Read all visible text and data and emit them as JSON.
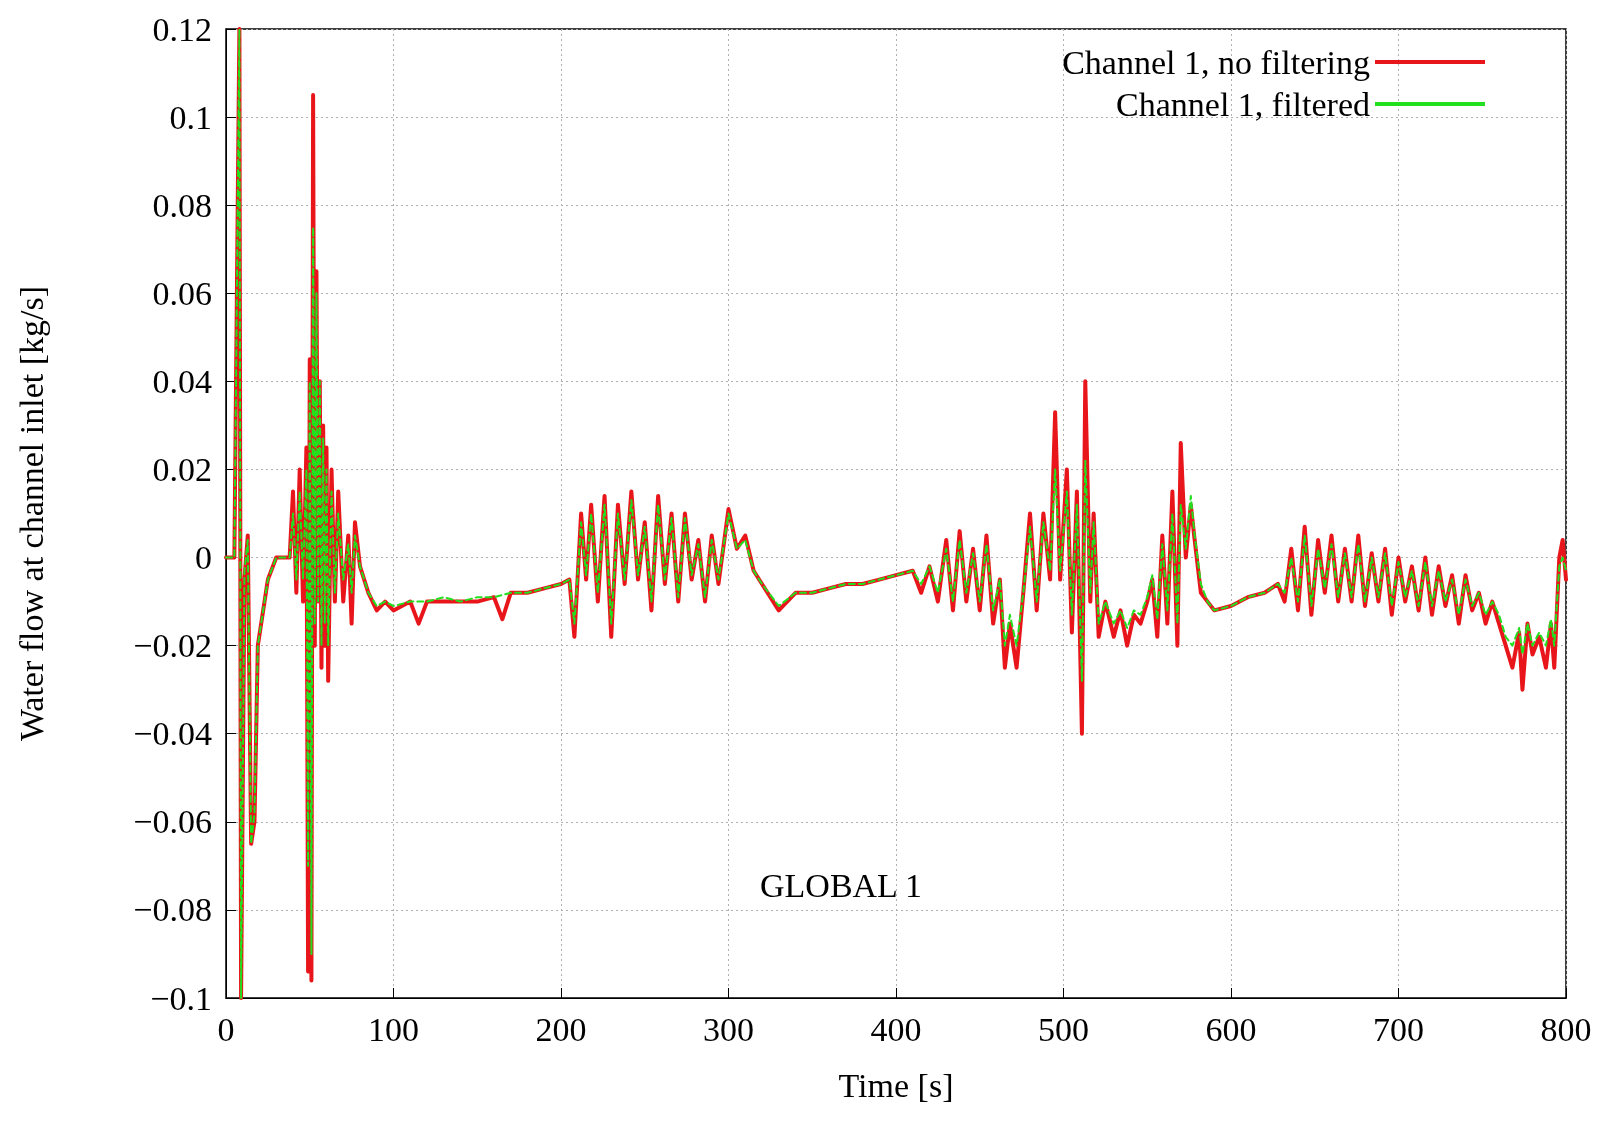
{
  "chart_data": {
    "type": "line",
    "xlabel": "Time [s]",
    "ylabel": "Water flow at channel inlet [kg/s]",
    "annotations": [
      "GLOBAL 1"
    ],
    "xlim": [
      0,
      800
    ],
    "xticks": [
      0,
      100,
      200,
      300,
      400,
      500,
      600,
      700,
      800
    ],
    "ylim": [
      -0.1,
      0.12
    ],
    "yticks": [
      {
        "value": -0.1,
        "label": "−0.1"
      },
      {
        "value": -0.08,
        "label": "−0.08"
      },
      {
        "value": -0.06,
        "label": "−0.06"
      },
      {
        "value": -0.04,
        "label": "−0.04"
      },
      {
        "value": -0.02,
        "label": "−0.02"
      },
      0,
      0.02,
      0.04,
      0.06,
      0.08,
      0.1,
      0.12
    ],
    "grid": true,
    "legend": "top right",
    "marker": "none",
    "series": [
      {
        "name": "Channel 1, no filtering",
        "color": "#e8161b",
        "line_style": "solid",
        "x": [
          0,
          5,
          8,
          9,
          11,
          13,
          15,
          17,
          19,
          21,
          25,
          30,
          38,
          40,
          42,
          44,
          46,
          48,
          49,
          50,
          51,
          52,
          53,
          54,
          55,
          56,
          57,
          58,
          59,
          60,
          61,
          63,
          65,
          67,
          70,
          73,
          75,
          77,
          80,
          85,
          90,
          95,
          100,
          110,
          115,
          120,
          130,
          140,
          150,
          160,
          165,
          170,
          180,
          190,
          200,
          205,
          208,
          212,
          215,
          218,
          222,
          226,
          230,
          234,
          238,
          242,
          246,
          250,
          254,
          258,
          262,
          266,
          270,
          274,
          278,
          282,
          286,
          290,
          294,
          300,
          305,
          310,
          315,
          320,
          330,
          340,
          350,
          360,
          370,
          380,
          390,
          400,
          410,
          415,
          420,
          425,
          430,
          434,
          438,
          442,
          446,
          450,
          454,
          458,
          462,
          465,
          468,
          472,
          476,
          480,
          484,
          488,
          492,
          495,
          498,
          502,
          505,
          508,
          511,
          513,
          516,
          518,
          521,
          525,
          530,
          534,
          538,
          542,
          546,
          550,
          553,
          556,
          559,
          562,
          565,
          568,
          570,
          573,
          576,
          578,
          582,
          586,
          590,
          600,
          610,
          620,
          628,
          632,
          636,
          640,
          644,
          648,
          652,
          656,
          660,
          664,
          668,
          672,
          676,
          680,
          684,
          688,
          692,
          696,
          700,
          704,
          708,
          712,
          716,
          720,
          724,
          728,
          732,
          736,
          740,
          744,
          748,
          752,
          756,
          760,
          764,
          768,
          772,
          774,
          777,
          780,
          784,
          788,
          791,
          793,
          796,
          798,
          800
        ],
        "values": [
          0,
          0,
          0.12,
          -0.1,
          -0.005,
          0.005,
          -0.065,
          -0.06,
          -0.02,
          -0.015,
          -0.005,
          0,
          0,
          0.015,
          -0.008,
          0.02,
          -0.01,
          0.025,
          -0.094,
          0.045,
          -0.096,
          0.105,
          -0.02,
          0.065,
          -0.01,
          0.04,
          -0.025,
          0.03,
          -0.02,
          0.025,
          -0.028,
          0.02,
          -0.01,
          0.015,
          -0.01,
          0.005,
          -0.015,
          0.008,
          -0.002,
          -0.008,
          -0.012,
          -0.01,
          -0.012,
          -0.01,
          -0.015,
          -0.01,
          -0.01,
          -0.01,
          -0.01,
          -0.009,
          -0.014,
          -0.008,
          -0.008,
          -0.007,
          -0.006,
          -0.005,
          -0.018,
          0.01,
          -0.005,
          0.012,
          -0.01,
          0.014,
          -0.018,
          0.012,
          -0.006,
          0.015,
          -0.005,
          0.008,
          -0.012,
          0.014,
          -0.006,
          0.01,
          -0.01,
          0.01,
          -0.005,
          0.004,
          -0.01,
          0.005,
          -0.006,
          0.011,
          0.002,
          0.005,
          -0.003,
          -0.006,
          -0.012,
          -0.008,
          -0.008,
          -0.007,
          -0.006,
          -0.006,
          -0.005,
          -0.004,
          -0.003,
          -0.008,
          -0.002,
          -0.01,
          0.004,
          -0.012,
          0.006,
          -0.01,
          0.002,
          -0.012,
          0.005,
          -0.015,
          -0.005,
          -0.025,
          -0.015,
          -0.025,
          -0.008,
          0.01,
          -0.012,
          0.01,
          -0.005,
          0.033,
          -0.005,
          0.02,
          -0.017,
          0.015,
          -0.04,
          0.04,
          -0.01,
          0.01,
          -0.018,
          -0.01,
          -0.018,
          -0.012,
          -0.02,
          -0.013,
          -0.015,
          -0.01,
          -0.005,
          -0.018,
          0.005,
          -0.015,
          0.015,
          -0.02,
          0.026,
          0,
          0.012,
          0.005,
          -0.008,
          -0.01,
          -0.012,
          -0.011,
          -0.009,
          -0.008,
          -0.006,
          -0.01,
          0.002,
          -0.012,
          0.007,
          -0.013,
          0.004,
          -0.008,
          0.005,
          -0.01,
          0.002,
          -0.01,
          0.005,
          -0.011,
          0.001,
          -0.01,
          0.002,
          -0.013,
          0,
          -0.01,
          -0.002,
          -0.012,
          0,
          -0.013,
          -0.002,
          -0.011,
          -0.004,
          -0.015,
          -0.004,
          -0.012,
          -0.008,
          -0.015,
          -0.01,
          -0.015,
          -0.02,
          -0.025,
          -0.017,
          -0.03,
          -0.015,
          -0.022,
          -0.018,
          -0.025,
          -0.015,
          -0.025,
          0,
          0.004,
          -0.005
        ]
      },
      {
        "name": "Channel 1, filtered",
        "color": "#22e01e",
        "line_style": "dashed",
        "x": [
          0,
          5,
          8,
          9,
          11,
          13,
          15,
          17,
          19,
          21,
          25,
          30,
          38,
          40,
          42,
          44,
          46,
          48,
          49,
          50,
          51,
          52,
          53,
          54,
          55,
          56,
          57,
          58,
          59,
          60,
          61,
          63,
          65,
          67,
          70,
          73,
          75,
          77,
          80,
          85,
          90,
          95,
          100,
          110,
          120,
          130,
          140,
          150,
          160,
          170,
          180,
          190,
          200,
          205,
          208,
          212,
          215,
          218,
          222,
          226,
          230,
          234,
          238,
          242,
          246,
          250,
          254,
          258,
          262,
          266,
          270,
          274,
          278,
          282,
          286,
          290,
          294,
          300,
          305,
          310,
          315,
          320,
          330,
          340,
          350,
          360,
          370,
          380,
          390,
          400,
          410,
          415,
          420,
          425,
          430,
          434,
          438,
          442,
          446,
          450,
          454,
          458,
          462,
          465,
          468,
          472,
          476,
          480,
          484,
          488,
          492,
          495,
          498,
          502,
          505,
          508,
          511,
          513,
          516,
          518,
          521,
          525,
          530,
          534,
          538,
          542,
          546,
          550,
          553,
          556,
          559,
          562,
          565,
          568,
          570,
          573,
          576,
          578,
          582,
          586,
          590,
          600,
          610,
          620,
          628,
          632,
          636,
          640,
          644,
          648,
          652,
          656,
          660,
          664,
          668,
          672,
          676,
          680,
          684,
          688,
          692,
          696,
          700,
          704,
          708,
          712,
          716,
          720,
          724,
          728,
          732,
          736,
          740,
          744,
          748,
          752,
          756,
          760,
          764,
          768,
          772,
          774,
          777,
          780,
          784,
          788,
          791,
          793,
          796,
          798,
          800
        ],
        "values": [
          0,
          0,
          0.12,
          -0.1,
          -0.003,
          0.004,
          -0.065,
          -0.058,
          -0.02,
          -0.015,
          -0.005,
          0,
          0,
          0.01,
          -0.005,
          0.015,
          -0.005,
          0.02,
          -0.07,
          0.04,
          -0.09,
          0.075,
          -0.015,
          0.06,
          -0.01,
          0.04,
          -0.02,
          0.027,
          -0.015,
          0.02,
          -0.02,
          0.015,
          -0.008,
          0.01,
          -0.005,
          0.003,
          -0.008,
          0.005,
          -0.002,
          -0.008,
          -0.011,
          -0.01,
          -0.011,
          -0.01,
          -0.01,
          -0.009,
          -0.01,
          -0.009,
          -0.009,
          -0.008,
          -0.008,
          -0.007,
          -0.006,
          -0.005,
          -0.015,
          0.008,
          -0.004,
          0.01,
          -0.008,
          0.012,
          -0.015,
          0.01,
          -0.005,
          0.013,
          -0.004,
          0.007,
          -0.01,
          0.012,
          -0.005,
          0.009,
          -0.009,
          0.009,
          -0.004,
          0.003,
          -0.009,
          0.004,
          -0.005,
          0.01,
          0.002,
          0.004,
          -0.003,
          -0.006,
          -0.011,
          -0.008,
          -0.008,
          -0.007,
          -0.006,
          -0.006,
          -0.005,
          -0.004,
          -0.003,
          -0.006,
          -0.002,
          -0.008,
          0.002,
          -0.01,
          0.004,
          -0.008,
          0.001,
          -0.01,
          0.003,
          -0.012,
          -0.005,
          -0.02,
          -0.013,
          -0.02,
          -0.008,
          0.007,
          -0.01,
          0.008,
          -0.003,
          0.02,
          -0.003,
          0.015,
          -0.013,
          0.012,
          -0.028,
          0.022,
          -0.008,
          0.008,
          -0.015,
          -0.01,
          -0.015,
          -0.012,
          -0.016,
          -0.012,
          -0.013,
          -0.009,
          -0.004,
          -0.014,
          0.003,
          -0.012,
          0.01,
          -0.015,
          0.012,
          0.002,
          0.014,
          0.006,
          -0.006,
          -0.01,
          -0.012,
          -0.011,
          -0.009,
          -0.008,
          -0.006,
          -0.008,
          0,
          -0.01,
          0.005,
          -0.011,
          0.002,
          -0.007,
          0.003,
          -0.009,
          0.001,
          -0.009,
          0.003,
          -0.01,
          0,
          -0.009,
          0.001,
          -0.011,
          -0.001,
          -0.009,
          -0.003,
          -0.011,
          -0.001,
          -0.011,
          -0.003,
          -0.01,
          -0.005,
          -0.013,
          -0.005,
          -0.011,
          -0.008,
          -0.013,
          -0.01,
          -0.013,
          -0.018,
          -0.02,
          -0.016,
          -0.022,
          -0.015,
          -0.02,
          -0.017,
          -0.02,
          -0.014,
          -0.02,
          -0.002,
          0,
          -0.003
        ]
      }
    ]
  }
}
